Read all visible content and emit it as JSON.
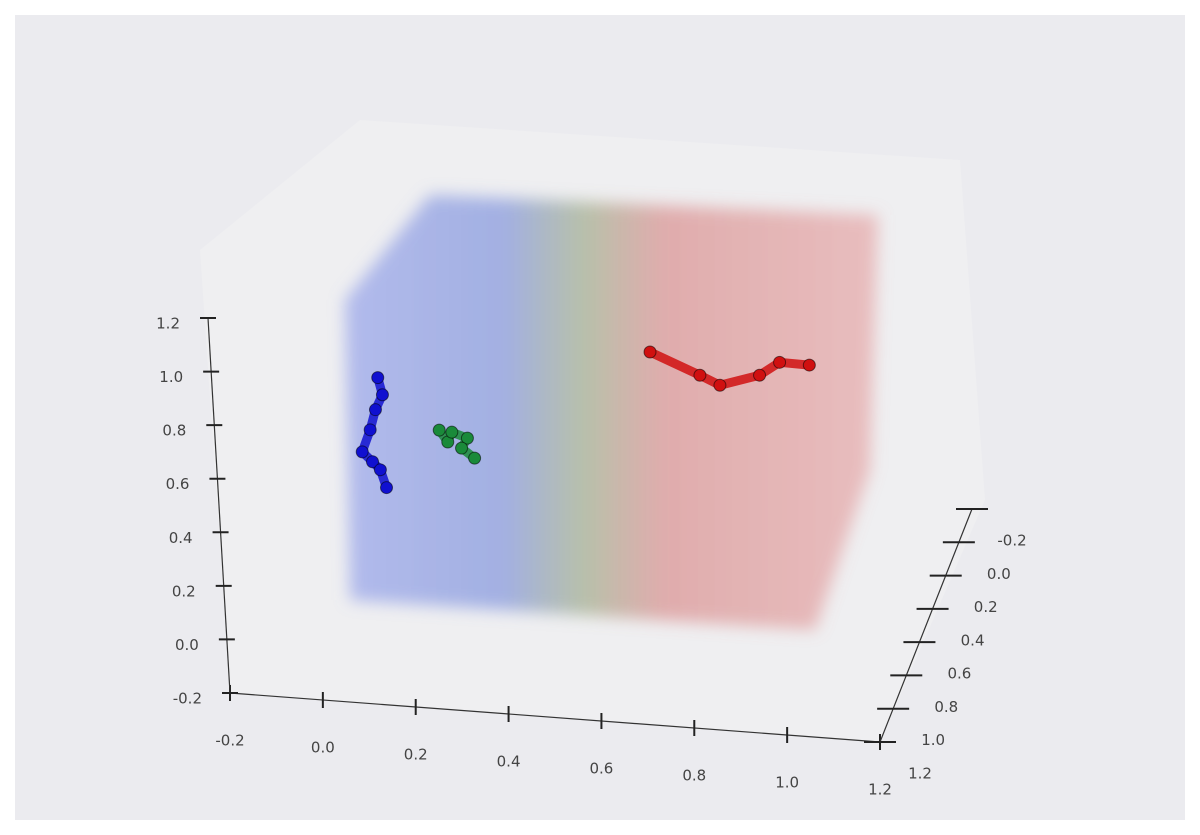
{
  "chart_data": {
    "type": "scatter3d",
    "xlim": [
      -0.2,
      1.2
    ],
    "ylim": [
      -0.2,
      1.2
    ],
    "zlim": [
      -0.2,
      1.2
    ],
    "xticks": [
      -0.2,
      {
        "value": 0,
        "label": "0.0"
      },
      0.2,
      0.4,
      0.6,
      0.8,
      {
        "value": 1,
        "label": "1.0"
      },
      1.2
    ],
    "yticks": [
      -0.2,
      {
        "value": 0,
        "label": "0.0"
      },
      0.2,
      0.4,
      0.6,
      0.8,
      {
        "value": 1,
        "label": "1.0"
      },
      1.2
    ],
    "zticks": [
      -0.2,
      {
        "value": 0,
        "label": "0.0"
      },
      0.2,
      0.4,
      0.6,
      0.8,
      {
        "value": 1,
        "label": "1.0"
      },
      1.2
    ],
    "series": [
      {
        "color": "#1010d0",
        "x": [
          0.127,
          0.135,
          0.118,
          0.104,
          0.084,
          0.105,
          0.121,
          0.132
        ],
        "y": [
          1.0,
          1.0,
          1.0,
          1.0,
          1.0,
          1.0,
          1.0,
          1.0
        ],
        "z": [
          0.896,
          0.833,
          0.775,
          0.698,
          0.613,
          0.579,
          0.551,
          0.486
        ]
      },
      {
        "color": "#1a8a3a",
        "x": [
          0.237,
          0.254,
          0.264,
          0.297,
          0.283,
          0.31
        ],
        "y": [
          0.9,
          0.9,
          0.9,
          0.9,
          0.9,
          0.9
        ],
        "z": [
          0.652,
          0.61,
          0.648,
          0.63,
          0.591,
          0.557
        ]
      },
      {
        "color": "#d01010",
        "x": [
          0.605,
          0.71,
          0.752,
          0.839,
          0.884,
          0.948
        ],
        "y": [
          0.3,
          0.3,
          0.3,
          0.3,
          0.3,
          0.3
        ],
        "z": [
          0.619,
          0.546,
          0.514,
          0.563,
          0.617,
          0.615
        ]
      }
    ]
  }
}
